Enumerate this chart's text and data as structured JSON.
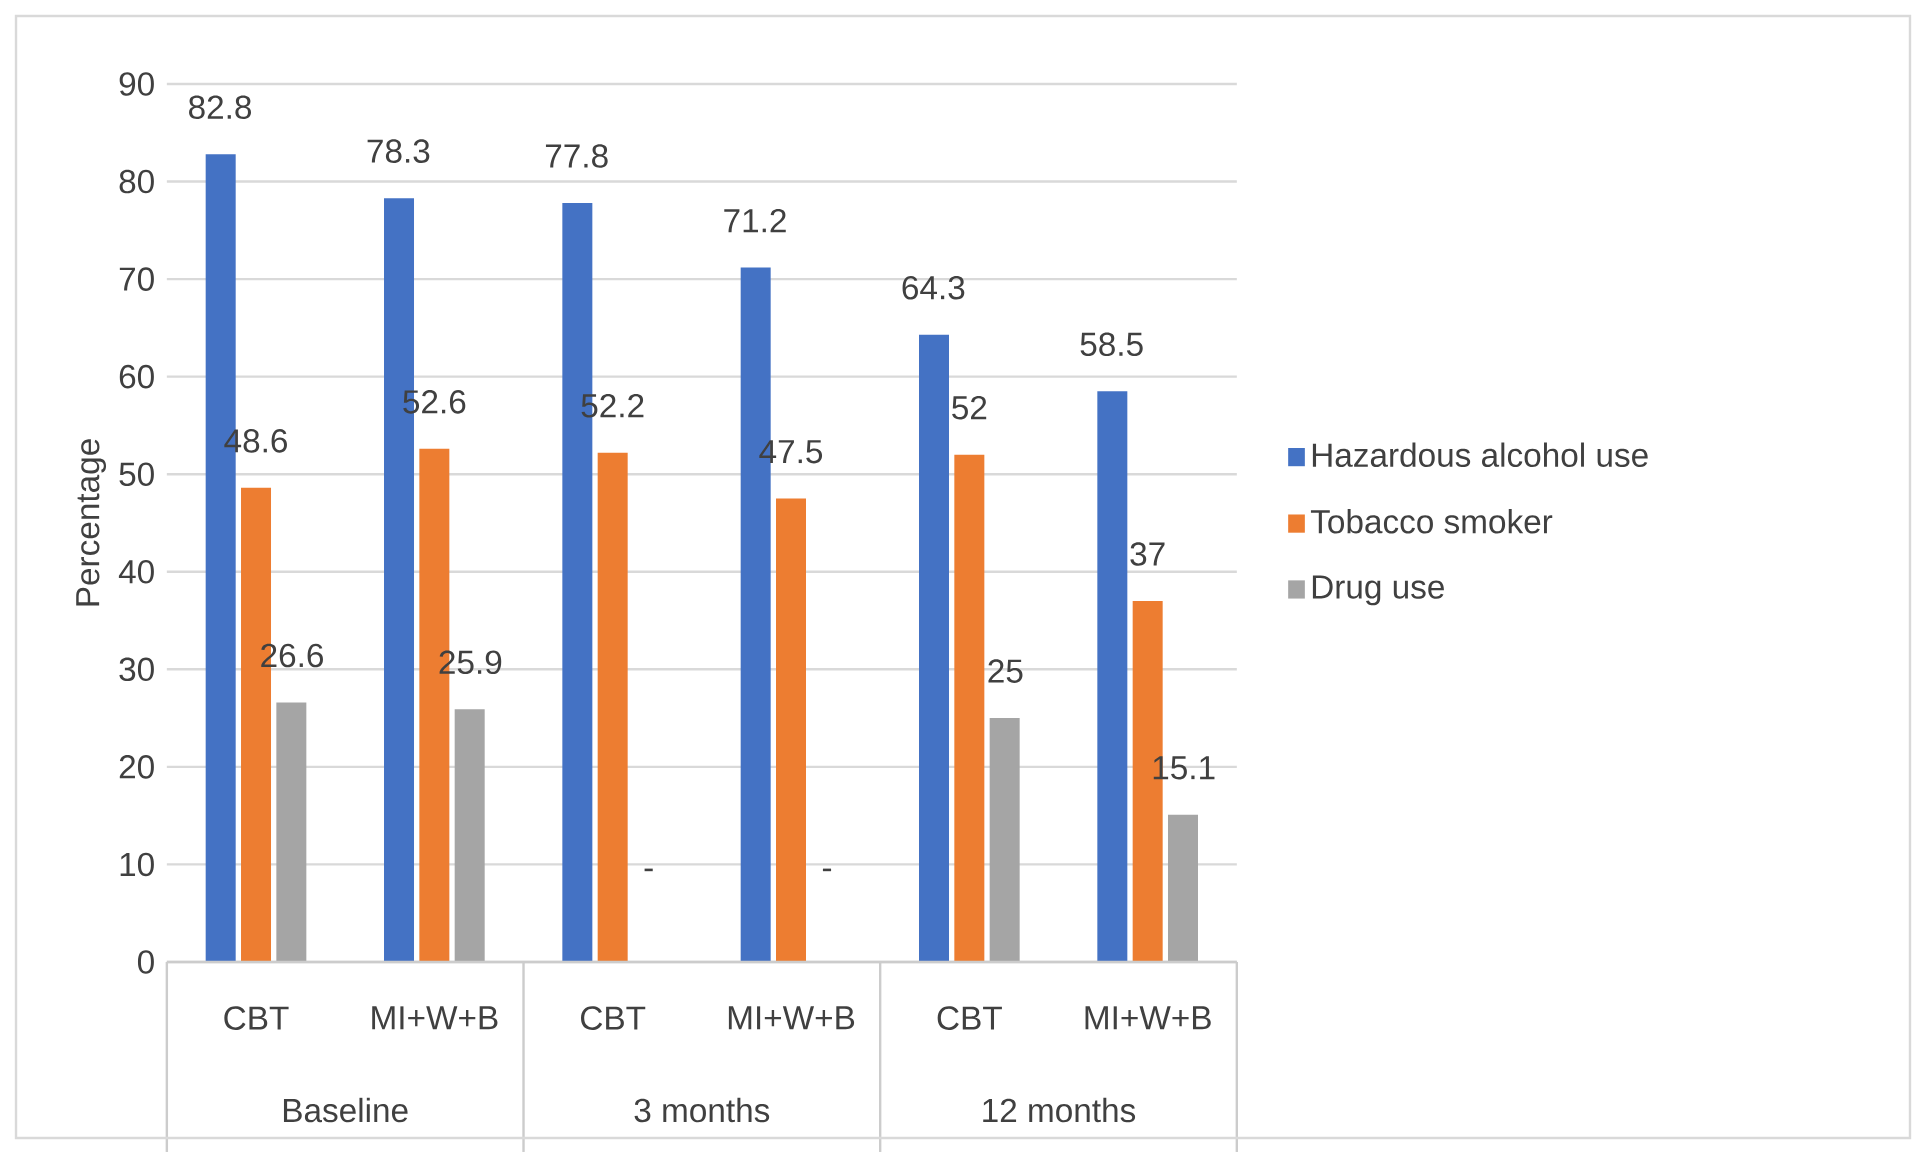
{
  "chart_data": {
    "type": "bar",
    "ylabel": "Percentage",
    "categories": [
      "CBT",
      "MI+W+B",
      "CBT",
      "MI+W+B",
      "CBT",
      "MI+W+B"
    ],
    "annotations": [
      "Baseline",
      "3 months",
      "12 months"
    ],
    "series": [
      {
        "name": "Hazardous alcohol use",
        "color": "#4472c4",
        "values": [
          82.8,
          78.3,
          77.8,
          71.2,
          64.3,
          58.5
        ],
        "value_labels": [
          "82.8",
          "78.3",
          "77.8",
          "71.2",
          "64.3",
          "58.5"
        ]
      },
      {
        "name": "Tobacco smoker",
        "color": "#ed7d31",
        "values": [
          48.6,
          52.6,
          52.2,
          47.5,
          52,
          37
        ],
        "value_labels": [
          "48.6",
          "52.6",
          "52.2",
          "47.5",
          "52",
          "37"
        ]
      },
      {
        "name": "Drug use",
        "color": "#a5a5a5",
        "values": [
          26.6,
          25.9,
          null,
          null,
          25,
          15.1
        ],
        "value_labels": [
          "26.6",
          "25.9",
          "-",
          "-",
          "25",
          "15.1"
        ]
      }
    ],
    "ylim": [
      0,
      90
    ],
    "yticks": [
      0,
      10,
      20,
      30,
      40,
      50,
      60,
      70,
      80,
      90
    ],
    "grid": "y",
    "legend": "right"
  }
}
